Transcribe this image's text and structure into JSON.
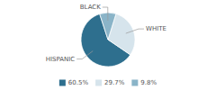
{
  "chart_data": {
    "type": "pie",
    "categories": [
      "HISPANIC",
      "WHITE",
      "BLACK"
    ],
    "values": [
      60.5,
      29.7,
      9.8
    ],
    "value_labels": [
      "60.5%",
      "29.7%",
      "9.8%"
    ],
    "colors": [
      "#2e6f8e",
      "#d6e4ec",
      "#8ab4c8"
    ],
    "legend": "bottom"
  }
}
